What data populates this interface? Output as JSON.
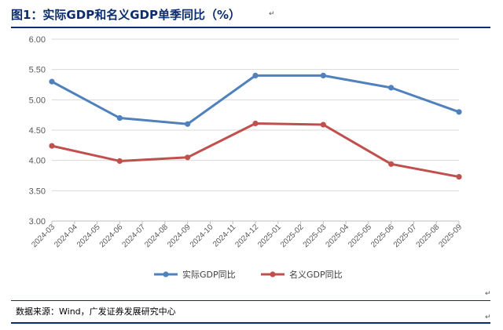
{
  "header": {
    "title": "图1：实际GDP和名义GDP单季同比（%）",
    "para_mark": "↵"
  },
  "chart_data": {
    "type": "line",
    "title": "",
    "xlabel": "",
    "ylabel": "",
    "ylim": [
      3.0,
      6.0
    ],
    "y_ticks": [
      "3.00",
      "3.50",
      "4.00",
      "4.50",
      "5.00",
      "5.50",
      "6.00"
    ],
    "categories": [
      "2024-03",
      "2024-04",
      "2024-05",
      "2024-06",
      "2024-07",
      "2024-08",
      "2024-09",
      "2024-10",
      "2024-11",
      "2024-12",
      "2025-01",
      "2025-02",
      "2025-03",
      "2025-04",
      "2025-05",
      "2025-06",
      "2025-07",
      "2025-08",
      "2025-09"
    ],
    "grid": true,
    "legend_position": "bottom",
    "series": [
      {
        "name": "实际GDP同比",
        "color": "#4f81bd",
        "points": [
          {
            "x": "2024-03",
            "y": 5.3
          },
          {
            "x": "2024-06",
            "y": 4.7
          },
          {
            "x": "2024-09",
            "y": 4.6
          },
          {
            "x": "2024-12",
            "y": 5.4
          },
          {
            "x": "2025-03",
            "y": 5.4
          },
          {
            "x": "2025-06",
            "y": 5.2
          },
          {
            "x": "2025-09",
            "y": 4.8
          }
        ]
      },
      {
        "name": "名义GDP同比",
        "color": "#c0504d",
        "points": [
          {
            "x": "2024-03",
            "y": 4.24
          },
          {
            "x": "2024-06",
            "y": 3.99
          },
          {
            "x": "2024-09",
            "y": 4.05
          },
          {
            "x": "2024-12",
            "y": 4.61
          },
          {
            "x": "2025-03",
            "y": 4.59
          },
          {
            "x": "2025-06",
            "y": 3.94
          },
          {
            "x": "2025-09",
            "y": 3.73
          }
        ]
      }
    ]
  },
  "footer": {
    "source": "数据来源：Wind，广发证券发展研究中心"
  }
}
